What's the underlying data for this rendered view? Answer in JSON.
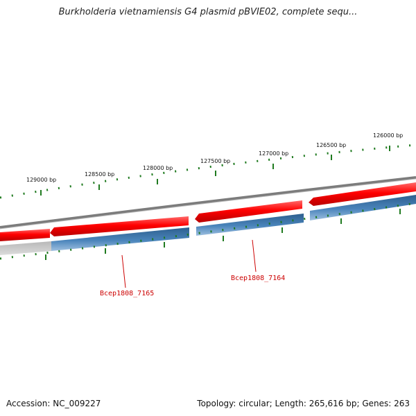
{
  "title": "Burkholderia vietnamiensis G4 plasmid pBVIE02, complete sequ...",
  "footer": {
    "accession": "Accession: NC_009227",
    "summary": "Topology: circular; Length: 265,616 bp; Genes: 263"
  },
  "scale_ticks": [
    {
      "label": "129000 bp"
    },
    {
      "label": "128500 bp"
    },
    {
      "label": "128000 bp"
    },
    {
      "label": "127500 bp"
    },
    {
      "label": "127000 bp"
    },
    {
      "label": "126500 bp"
    },
    {
      "label": "126000 bp"
    }
  ],
  "gene_labels": [
    {
      "name": "Bcep1808_7165"
    },
    {
      "name": "Bcep1808_7164"
    }
  ],
  "colors": {
    "forward_gene": "#ee0000",
    "reverse_gene": "#3f78ad",
    "backbone": "#8a8a8a",
    "tick": "#1f7a1f",
    "label": "#cc0000"
  }
}
